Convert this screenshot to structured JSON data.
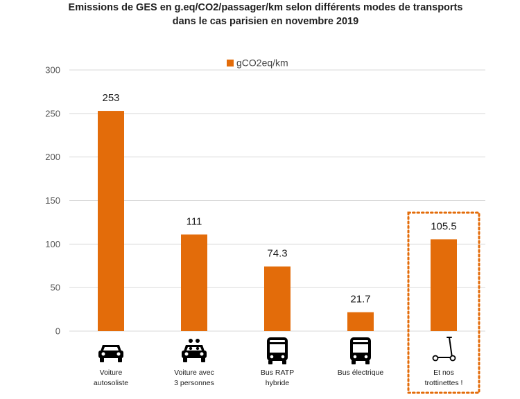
{
  "chart_data": {
    "type": "bar",
    "title_lines": [
      "Emissions de GES en g.eq/CO2/passager/km selon différents modes de transports",
      "dans le cas parisien en novembre 2019"
    ],
    "categories": [
      [
        "Voiture",
        "autosoliste"
      ],
      [
        "Voiture avec",
        "3 personnes"
      ],
      [
        "Bus RATP",
        "hybride"
      ],
      [
        "Bus électrique"
      ],
      [
        "Et nos",
        "trottinettes !"
      ]
    ],
    "category_icons": [
      "car-icon",
      "carpool-car-icon",
      "bus-icon",
      "electric-bus-icon",
      "scooter-icon"
    ],
    "series": [
      {
        "name": "gCO2eq/km",
        "values": [
          253,
          111,
          74.3,
          21.7,
          105.5
        ]
      }
    ],
    "data_labels": [
      "253",
      "111",
      "74.3",
      "21.7",
      "105.5"
    ],
    "yticks": [
      0,
      50,
      100,
      150,
      200,
      250,
      300
    ],
    "ylim": [
      0,
      300
    ],
    "xlabel": "",
    "ylabel": "",
    "grid": true,
    "legend_position": "top-center",
    "highlighted_category_index": 4,
    "highlight_style": "dotted-box",
    "colors": {
      "bar": "#e36c0a",
      "highlight_border": "#e36c0a",
      "gridline": "#d9d9d9",
      "icon": "#000000"
    }
  }
}
